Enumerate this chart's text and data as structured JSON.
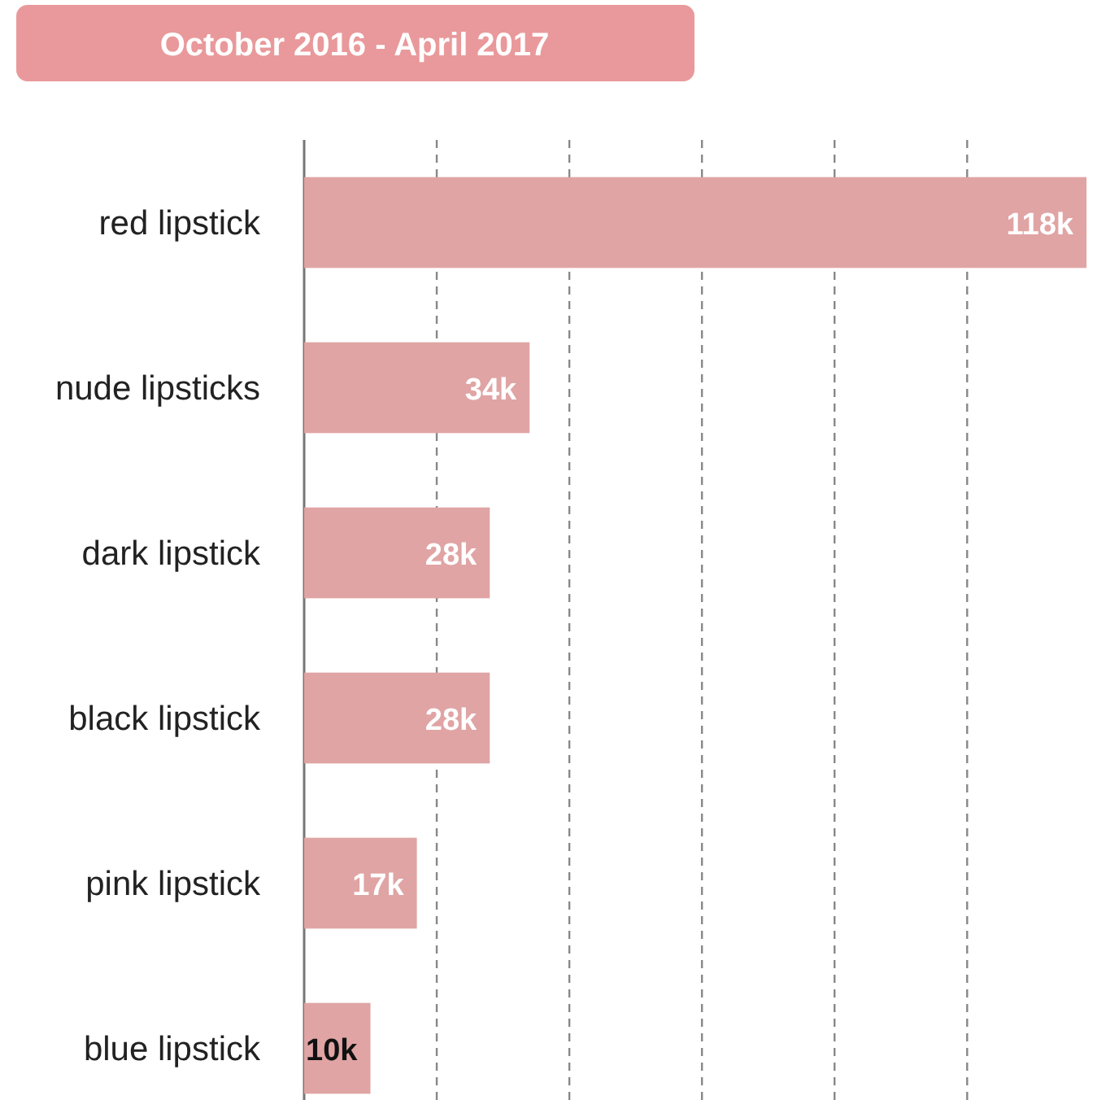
{
  "chart_data": {
    "type": "bar",
    "orientation": "horizontal",
    "title": "October 2016 - April 2017",
    "categories": [
      "red lipstick",
      "nude lipsticks",
      "dark lipstick",
      "black lipstick",
      "pink lipstick",
      "blue lipstick"
    ],
    "values": [
      118,
      34,
      28,
      28,
      17,
      10
    ],
    "value_labels": [
      "118k",
      "34k",
      "28k",
      "28k",
      "17k",
      "10k"
    ],
    "color": "#e0a4a4",
    "xticks": [
      {
        "value": 20,
        "label": null
      },
      {
        "value": 40,
        "label": null
      },
      {
        "value": 60,
        "label": null
      },
      {
        "value": 80,
        "label": null
      },
      {
        "value": 100,
        "label": null
      }
    ],
    "grid": "x",
    "line_style": "dashed",
    "tick_labels": "y"
  }
}
